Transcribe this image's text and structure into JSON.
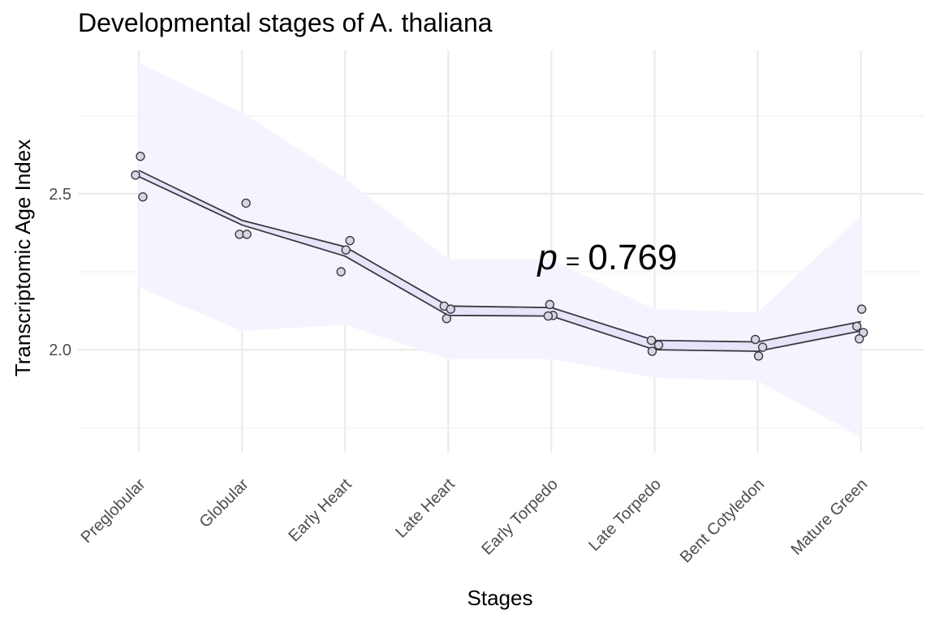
{
  "chart_data": {
    "type": "line",
    "title": "Developmental stages of A. thaliana",
    "xlabel": "Stages",
    "ylabel": "Transcriptomic Age Index",
    "categories": [
      "Preglobular",
      "Globular",
      "Early Heart",
      "Late Heart",
      "Early Torpedo",
      "Late Torpedo",
      "Bent Cotyledon",
      "Mature Green"
    ],
    "ylim": [
      1.67,
      2.96
    ],
    "yticks": [
      {
        "value": 2.0,
        "label": "2.0"
      },
      {
        "value": 2.5,
        "label": "2.5"
      }
    ],
    "minor_yticks": [
      1.75,
      2.25,
      2.75
    ],
    "grid": true,
    "series": [
      {
        "kind": "mean_band",
        "upper": [
          2.575,
          2.415,
          2.33,
          2.14,
          2.135,
          2.03,
          2.025,
          2.09
        ],
        "lower": [
          2.555,
          2.4,
          2.3,
          2.11,
          2.108,
          2.0,
          1.995,
          2.06
        ]
      },
      {
        "kind": "confidence_ribbon",
        "upper": [
          2.92,
          2.76,
          2.55,
          2.29,
          2.29,
          2.13,
          2.12,
          2.43
        ],
        "lower": [
          2.2,
          2.06,
          2.08,
          1.97,
          1.97,
          1.91,
          1.9,
          1.72
        ]
      },
      {
        "kind": "replicates",
        "points": [
          {
            "x": "Preglobular",
            "y": 2.62
          },
          {
            "x": "Preglobular",
            "y": 2.56
          },
          {
            "x": "Preglobular",
            "y": 2.49
          },
          {
            "x": "Globular",
            "y": 2.47
          },
          {
            "x": "Globular",
            "y": 2.37
          },
          {
            "x": "Globular",
            "y": 2.37
          },
          {
            "x": "Early Heart",
            "y": 2.35
          },
          {
            "x": "Early Heart",
            "y": 2.32
          },
          {
            "x": "Early Heart",
            "y": 2.25
          },
          {
            "x": "Late Heart",
            "y": 2.14
          },
          {
            "x": "Late Heart",
            "y": 2.13
          },
          {
            "x": "Late Heart",
            "y": 2.1
          },
          {
            "x": "Early Torpedo",
            "y": 2.145
          },
          {
            "x": "Early Torpedo",
            "y": 2.11
          },
          {
            "x": "Early Torpedo",
            "y": 2.108
          },
          {
            "x": "Late Torpedo",
            "y": 2.03
          },
          {
            "x": "Late Torpedo",
            "y": 2.015
          },
          {
            "x": "Late Torpedo",
            "y": 1.995
          },
          {
            "x": "Bent Cotyledon",
            "y": 2.033
          },
          {
            "x": "Bent Cotyledon",
            "y": 2.008
          },
          {
            "x": "Bent Cotyledon",
            "y": 1.98
          },
          {
            "x": "Mature Green",
            "y": 2.13
          },
          {
            "x": "Mature Green",
            "y": 2.075
          },
          {
            "x": "Mature Green",
            "y": 2.055
          },
          {
            "x": "Mature Green",
            "y": 2.035
          }
        ]
      }
    ],
    "annotation": {
      "p_symbol": "p",
      "equals": "=",
      "value": "0.769",
      "at_category": "Early Torpedo",
      "at_y": 2.3
    },
    "colors": {
      "ribbon": "#f5f4fe",
      "mean_band": "#e5e4f8",
      "line": "#3a3a42",
      "point_fill": "#d6d5e3",
      "point_stroke": "#3a3a42",
      "grid": "#ebebeb"
    }
  }
}
